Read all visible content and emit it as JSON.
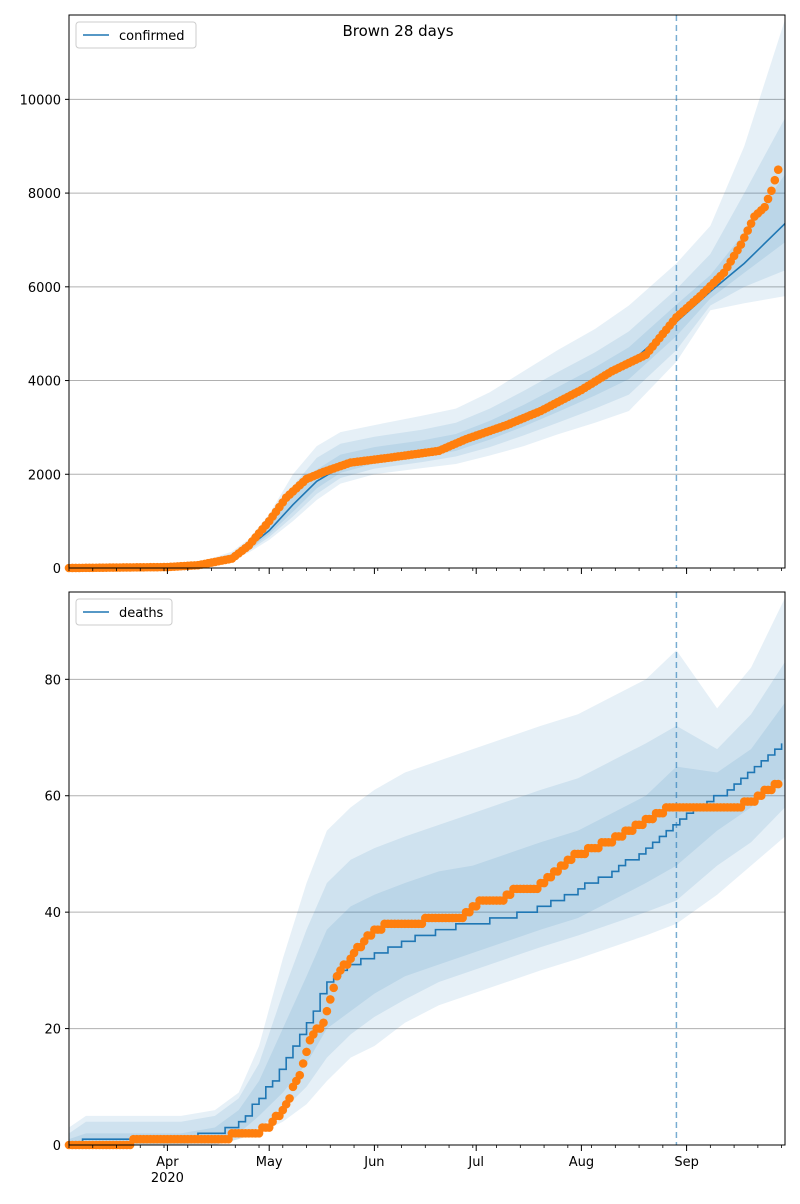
{
  "title": "Brown 28 days",
  "colors": {
    "model": "#1f77b4",
    "observed": "#ff7f0e",
    "band": "#1f77b4",
    "grid": "#b0b0b0"
  },
  "x_axis": {
    "range": [
      "2020-03-03",
      "2020-09-30"
    ],
    "ticks": [
      {
        "date": "2020-04-01",
        "label": "Apr",
        "sublabel": "2020"
      },
      {
        "date": "2020-05-01",
        "label": "May",
        "sublabel": ""
      },
      {
        "date": "2020-06-01",
        "label": "Jun",
        "sublabel": ""
      },
      {
        "date": "2020-07-01",
        "label": "Jul",
        "sublabel": ""
      },
      {
        "date": "2020-08-01",
        "label": "Aug",
        "sublabel": ""
      },
      {
        "date": "2020-09-01",
        "label": "Sep",
        "sublabel": ""
      }
    ]
  },
  "chart_data": [
    {
      "type": "line",
      "series_name": "confirmed",
      "legend": "top-left",
      "grid": "horizontal",
      "forecast_start": "2020-08-29",
      "ylim": [
        0,
        11800
      ],
      "yticks": [
        0,
        2000,
        4000,
        6000,
        8000,
        10000
      ],
      "model": {
        "x": [
          "2020-03-03",
          "2020-03-20",
          "2020-04-10",
          "2020-04-20",
          "2020-04-25",
          "2020-05-01",
          "2020-05-08",
          "2020-05-15",
          "2020-05-22",
          "2020-06-01",
          "2020-06-15",
          "2020-06-25",
          "2020-07-05",
          "2020-07-15",
          "2020-07-25",
          "2020-08-05",
          "2020-08-15",
          "2020-08-29",
          "2020-09-08",
          "2020-09-18",
          "2020-09-30"
        ],
        "y": [
          0,
          0,
          80,
          250,
          450,
          800,
          1350,
          1850,
          2150,
          2350,
          2480,
          2620,
          2900,
          3200,
          3550,
          3950,
          4350,
          5250,
          5900,
          6500,
          7350
        ],
        "bands": [
          {
            "lower": [
              0,
              0,
              60,
              180,
              330,
              600,
              1000,
              1450,
              1800,
              2000,
              2130,
              2220,
              2400,
              2600,
              2850,
              3100,
              3350,
              4400,
              5500,
              5650,
              5800
            ],
            "upper": [
              0,
              0,
              110,
              350,
              620,
              1150,
              2000,
              2600,
              2900,
              3050,
              3250,
              3400,
              3750,
              4200,
              4650,
              5100,
              5600,
              6500,
              7300,
              9000,
              11700
            ]
          },
          {
            "lower": [
              0,
              0,
              65,
              200,
              370,
              660,
              1100,
              1580,
              1920,
              2120,
              2260,
              2380,
              2580,
              2830,
              3100,
              3400,
              3700,
              4650,
              5600,
              6000,
              6350
            ],
            "upper": [
              0,
              0,
              100,
              310,
              560,
              1020,
              1750,
              2350,
              2650,
              2800,
              2950,
              3100,
              3400,
              3780,
              4180,
              4600,
              5050,
              5950,
              6700,
              8000,
              9600
            ]
          },
          {
            "lower": [
              0,
              0,
              70,
              220,
              400,
              720,
              1200,
              1700,
              2030,
              2230,
              2370,
              2500,
              2740,
              3020,
              3330,
              3680,
              4030,
              4950,
              5750,
              6300,
              6950
            ],
            "upper": [
              0,
              0,
              92,
              285,
              510,
              900,
              1550,
              2100,
              2420,
              2580,
              2720,
              2860,
              3140,
              3480,
              3860,
              4280,
              4710,
              5620,
              6250,
              7150,
              8400
            ]
          }
        ]
      },
      "observed": {
        "x": [
          "2020-03-03",
          "2020-04-01",
          "2020-04-10",
          "2020-04-20",
          "2020-04-25",
          "2020-05-01",
          "2020-05-06",
          "2020-05-12",
          "2020-05-17",
          "2020-05-25",
          "2020-06-05",
          "2020-06-20",
          "2020-06-28",
          "2020-07-10",
          "2020-07-20",
          "2020-08-01",
          "2020-08-10",
          "2020-08-20",
          "2020-08-29",
          "2020-09-05",
          "2020-09-12",
          "2020-09-17",
          "2020-09-21",
          "2020-09-24",
          "2020-09-26",
          "2020-09-28"
        ],
        "y": [
          0,
          20,
          60,
          200,
          480,
          1000,
          1500,
          1900,
          2050,
          2250,
          2350,
          2500,
          2750,
          3050,
          3350,
          3800,
          4200,
          4550,
          5350,
          5800,
          6300,
          6900,
          7500,
          7700,
          8050,
          8500
        ]
      }
    },
    {
      "type": "line",
      "series_name": "deaths",
      "legend": "top-left",
      "grid": "horizontal",
      "forecast_start": "2020-08-29",
      "ylim": [
        0,
        95
      ],
      "yticks": [
        0,
        20,
        40,
        60,
        80
      ],
      "model": {
        "x": [
          "2020-03-03",
          "2020-03-08",
          "2020-04-05",
          "2020-04-15",
          "2020-04-22",
          "2020-04-28",
          "2020-05-05",
          "2020-05-12",
          "2020-05-18",
          "2020-05-25",
          "2020-06-01",
          "2020-06-10",
          "2020-06-20",
          "2020-06-30",
          "2020-07-10",
          "2020-07-20",
          "2020-07-31",
          "2020-08-10",
          "2020-08-20",
          "2020-08-29",
          "2020-09-10",
          "2020-09-20",
          "2020-09-30"
        ],
        "y": [
          0,
          1,
          1,
          2,
          4,
          8,
          14,
          21,
          28,
          31,
          33,
          35,
          37,
          38,
          39,
          41,
          44,
          47,
          51,
          56,
          60,
          64,
          70
        ],
        "bands": [
          {
            "lower": [
              0,
              0,
              0,
              0,
              1,
              2,
              4,
              7,
              11,
              15,
              17,
              21,
              24,
              26,
              28,
              30,
              32,
              34,
              36,
              38,
              43,
              48,
              53
            ],
            "upper": [
              3,
              5,
              5,
              6,
              9,
              17,
              32,
              45,
              54,
              58,
              61,
              64,
              66,
              68,
              70,
              72,
              74,
              77,
              80,
              85,
              75,
              82,
              94
            ]
          },
          {
            "lower": [
              0,
              0,
              0,
              0,
              1,
              3,
              6,
              10,
              15,
              19,
              22,
              25,
              28,
              30,
              32,
              34,
              36,
              38,
              40,
              42,
              48,
              52,
              58
            ],
            "upper": [
              2,
              4,
              4,
              5,
              8,
              14,
              26,
              37,
              45,
              49,
              51,
              53,
              55,
              57,
              59,
              61,
              63,
              66,
              69,
              72,
              68,
              74,
              83
            ]
          },
          {
            "lower": [
              0,
              0,
              0,
              1,
              2,
              5,
              9,
              14,
              20,
              23,
              26,
              29,
              31,
              33,
              35,
              37,
              39,
              42,
              45,
              48,
              54,
              58,
              63
            ],
            "upper": [
              1,
              2,
              2,
              3,
              6,
              11,
              20,
              29,
              37,
              41,
              43,
              45,
              47,
              48,
              50,
              52,
              54,
              57,
              60,
              65,
              64,
              68,
              76
            ]
          }
        ]
      },
      "observed": {
        "x": [
          "2020-03-03",
          "2020-04-10",
          "2020-04-18",
          "2020-04-22",
          "2020-04-26",
          "2020-05-01",
          "2020-05-05",
          "2020-05-10",
          "2020-05-13",
          "2020-05-17",
          "2020-05-21",
          "2020-05-25",
          "2020-05-29",
          "2020-06-01",
          "2020-06-06",
          "2020-06-12",
          "2020-06-20",
          "2020-06-27",
          "2020-07-02",
          "2020-07-09",
          "2020-07-13",
          "2020-07-18",
          "2020-07-23",
          "2020-07-28",
          "2020-08-05",
          "2020-08-12",
          "2020-08-18",
          "2020-08-24",
          "2020-08-27",
          "2020-09-10",
          "2020-09-15",
          "2020-09-21",
          "2020-09-25",
          "2020-09-28"
        ],
        "y": [
          0,
          1,
          1,
          2,
          2,
          3,
          6,
          12,
          18,
          21,
          29,
          32,
          35,
          37,
          38,
          38,
          39,
          39,
          42,
          42,
          44,
          44,
          46,
          49,
          51,
          53,
          55,
          57,
          58,
          58,
          58,
          59,
          61,
          62
        ]
      }
    }
  ]
}
